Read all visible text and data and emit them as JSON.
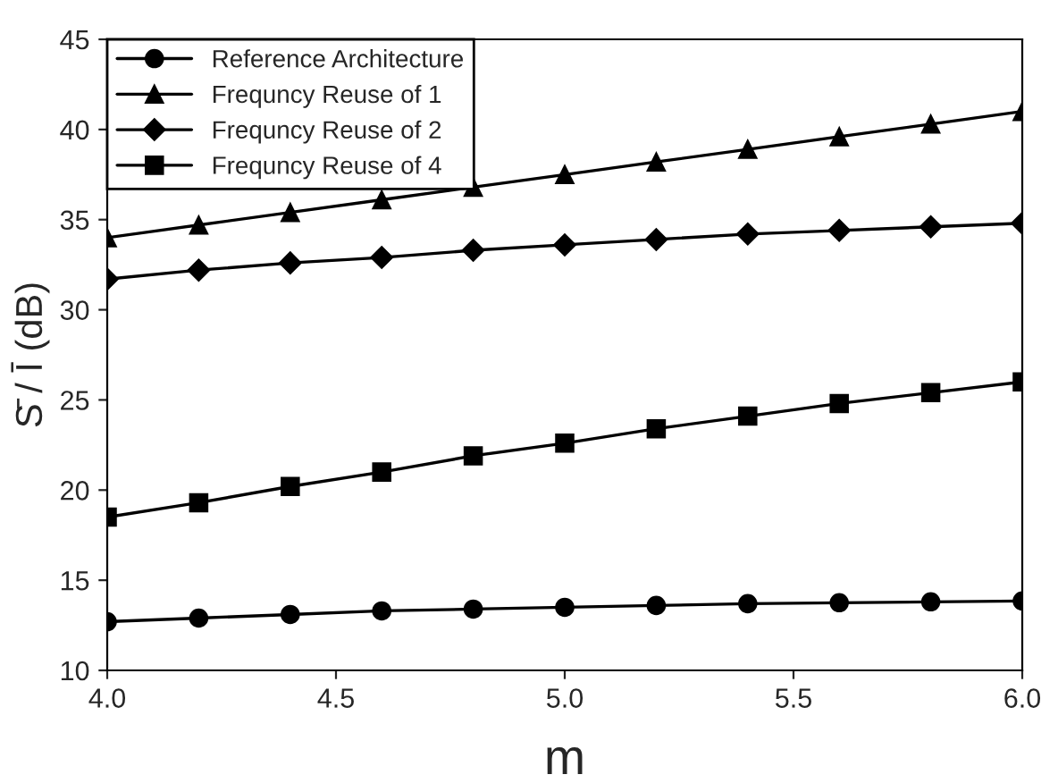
{
  "chart_data": {
    "type": "line",
    "xlabel": "m",
    "ylabel": "S̄ / Ī (dB)",
    "x": [
      4.0,
      4.2,
      4.4,
      4.6,
      4.8,
      5.0,
      5.2,
      5.4,
      5.6,
      5.8,
      6.0
    ],
    "series": [
      {
        "name": "Reference Architecture",
        "color": "#000000",
        "marker": "circle",
        "values": [
          12.7,
          12.9,
          13.1,
          13.3,
          13.4,
          13.5,
          13.6,
          13.7,
          13.75,
          13.8,
          13.85
        ]
      },
      {
        "name": "Frequncy Reuse of 1",
        "color": "#000000",
        "marker": "triangle",
        "values": [
          34.0,
          34.7,
          35.4,
          36.1,
          36.8,
          37.5,
          38.2,
          38.9,
          39.6,
          40.3,
          41.0
        ]
      },
      {
        "name": "Frequncy Reuse of 2",
        "color": "#000000",
        "marker": "diamond",
        "values": [
          31.7,
          32.2,
          32.6,
          32.9,
          33.3,
          33.6,
          33.9,
          34.2,
          34.4,
          34.6,
          34.8
        ]
      },
      {
        "name": "Frequncy Reuse of 4",
        "color": "#000000",
        "marker": "square",
        "values": [
          18.5,
          19.3,
          20.2,
          21.0,
          21.9,
          22.6,
          23.4,
          24.1,
          24.8,
          25.4,
          26.0
        ]
      }
    ],
    "xlim": [
      4.0,
      6.0
    ],
    "xticks": [
      {
        "value": 4.0,
        "label": "4.0"
      },
      {
        "value": 4.5,
        "label": "4.5"
      },
      {
        "value": 5.0,
        "label": "5.0"
      },
      {
        "value": 5.5,
        "label": "5.5"
      },
      {
        "value": 6.0,
        "label": "6.0"
      }
    ],
    "ylim": [
      10,
      45
    ],
    "yticks": [
      10,
      15,
      20,
      25,
      30,
      35,
      40,
      45
    ],
    "grid": false,
    "legend": "top left",
    "line_style": "solid"
  }
}
